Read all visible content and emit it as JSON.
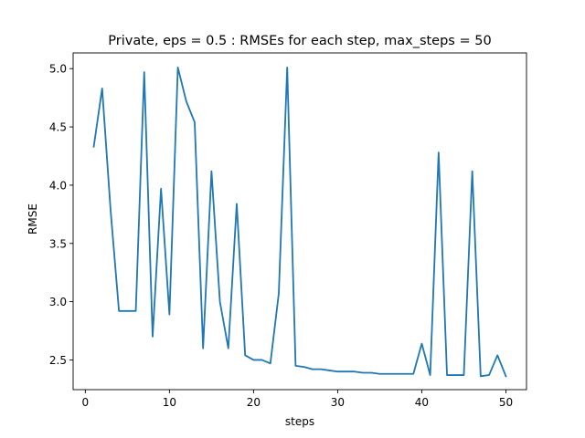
{
  "chart_data": {
    "type": "line",
    "title": "Private, eps = 0.5 : RMSEs for each step, max_steps = 50",
    "xlabel": "steps",
    "ylabel": "RMSE",
    "xlim": [
      -1.45,
      52.45
    ],
    "ylim": [
      2.245,
      5.135
    ],
    "xticks": [
      0,
      10,
      20,
      30,
      40,
      50
    ],
    "yticks": [
      2.5,
      3.0,
      3.5,
      4.0,
      4.5,
      5.0
    ],
    "xtick_labels": [
      "0",
      "10",
      "20",
      "30",
      "40",
      "50"
    ],
    "ytick_labels": [
      "2.5",
      "3.0",
      "3.5",
      "4.0",
      "4.5",
      "5.0"
    ],
    "grid": false,
    "line_color": "#1f77b4",
    "series": [
      {
        "x": [
          1,
          2,
          3,
          4,
          5,
          6,
          7,
          8,
          9,
          10,
          11,
          12,
          13,
          14,
          15,
          16,
          17,
          18,
          19,
          20,
          21,
          22,
          23,
          24,
          25,
          26,
          27,
          28,
          29,
          30,
          31,
          32,
          33,
          34,
          35,
          36,
          37,
          38,
          39,
          40,
          41,
          42,
          43,
          44,
          45,
          46,
          47,
          48,
          49,
          50
        ],
        "values": [
          4.33,
          4.83,
          3.79,
          2.92,
          2.92,
          2.92,
          4.97,
          2.7,
          3.97,
          2.89,
          5.01,
          4.72,
          4.54,
          2.6,
          4.12,
          3.0,
          2.6,
          3.84,
          2.54,
          2.5,
          2.5,
          2.47,
          3.07,
          5.01,
          2.45,
          2.44,
          2.42,
          2.42,
          2.41,
          2.4,
          2.4,
          2.4,
          2.39,
          2.39,
          2.38,
          2.38,
          2.38,
          2.38,
          2.38,
          2.64,
          2.37,
          4.28,
          2.37,
          2.37,
          2.37,
          4.12,
          2.36,
          2.37,
          2.54,
          2.36
        ]
      }
    ]
  }
}
